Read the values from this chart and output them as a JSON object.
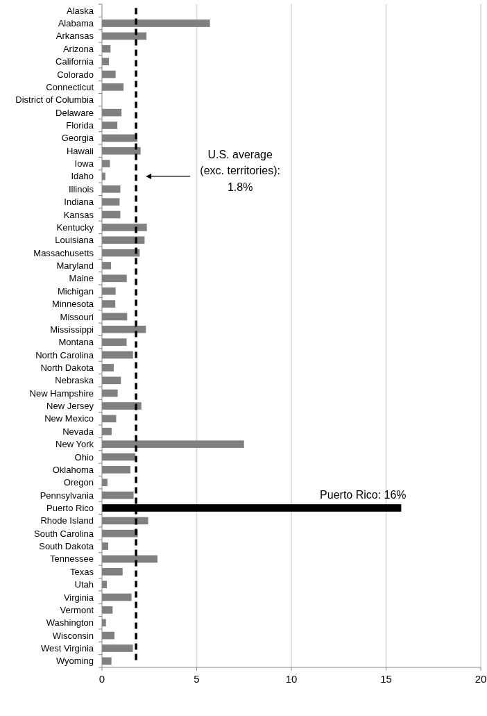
{
  "chart_data": {
    "type": "bar",
    "orientation": "horizontal",
    "categories": [
      "Alaska",
      "Alabama",
      "Arkansas",
      "Arizona",
      "California",
      "Colorado",
      "Connecticut",
      "District of Columbia",
      "Delaware",
      "Florida",
      "Georgia",
      "Hawaii",
      "Iowa",
      "Idaho",
      "Illinois",
      "Indiana",
      "Kansas",
      "Kentucky",
      "Louisiana",
      "Massachusetts",
      "Maryland",
      "Maine",
      "Michigan",
      "Minnesota",
      "Missouri",
      "Mississippi",
      "Montana",
      "North Carolina",
      "North Dakota",
      "Nebraska",
      "New Hampshire",
      "New Jersey",
      "New Mexico",
      "Nevada",
      "New York",
      "Ohio",
      "Oklahoma",
      "Oregon",
      "Pennsylvania",
      "Puerto Rico",
      "Rhode Island",
      "South Carolina",
      "South Dakota",
      "Tennessee",
      "Texas",
      "Utah",
      "Virginia",
      "Vermont",
      "Washington",
      "Wisconsin",
      "West Virginia",
      "Wyoming"
    ],
    "values": [
      null,
      5.7,
      2.35,
      0.45,
      0.37,
      0.72,
      1.14,
      null,
      1.03,
      0.81,
      1.87,
      2.04,
      0.42,
      0.18,
      0.97,
      0.93,
      0.97,
      2.37,
      2.25,
      1.99,
      0.48,
      1.31,
      0.72,
      0.7,
      1.33,
      2.32,
      1.3,
      1.64,
      0.62,
      1.0,
      0.83,
      2.08,
      0.75,
      0.51,
      7.5,
      1.76,
      1.5,
      0.29,
      1.67,
      15.8,
      2.44,
      1.89,
      0.33,
      2.93,
      1.09,
      0.26,
      1.56,
      0.56,
      0.21,
      0.66,
      1.63,
      0.5
    ],
    "colors": [
      null,
      "#808080",
      "#808080",
      "#808080",
      "#808080",
      "#808080",
      "#808080",
      null,
      "#808080",
      "#808080",
      "#808080",
      "#808080",
      "#808080",
      "#808080",
      "#808080",
      "#808080",
      "#808080",
      "#808080",
      "#808080",
      "#808080",
      "#808080",
      "#808080",
      "#808080",
      "#808080",
      "#808080",
      "#808080",
      "#808080",
      "#808080",
      "#808080",
      "#808080",
      "#808080",
      "#808080",
      "#808080",
      "#808080",
      "#808080",
      "#808080",
      "#808080",
      "#808080",
      "#808080",
      "#000000",
      "#808080",
      "#808080",
      "#808080",
      "#808080",
      "#808080",
      "#808080",
      "#808080",
      "#808080",
      "#808080",
      "#808080",
      "#808080",
      "#808080"
    ],
    "xlim": [
      0,
      20
    ],
    "xticks": [
      0,
      5,
      10,
      15,
      20
    ],
    "grid": "x",
    "ref_lines": [
      {
        "axis": "x",
        "value": 1.8,
        "label": "U.S. average (exc. territories): 1.8%",
        "color": "#000000",
        "line_style": "dashed"
      }
    ],
    "annotations": [
      {
        "text": "Puerto Rico: 16%",
        "x": 15.8,
        "y": "Puerto Rico"
      }
    ]
  }
}
